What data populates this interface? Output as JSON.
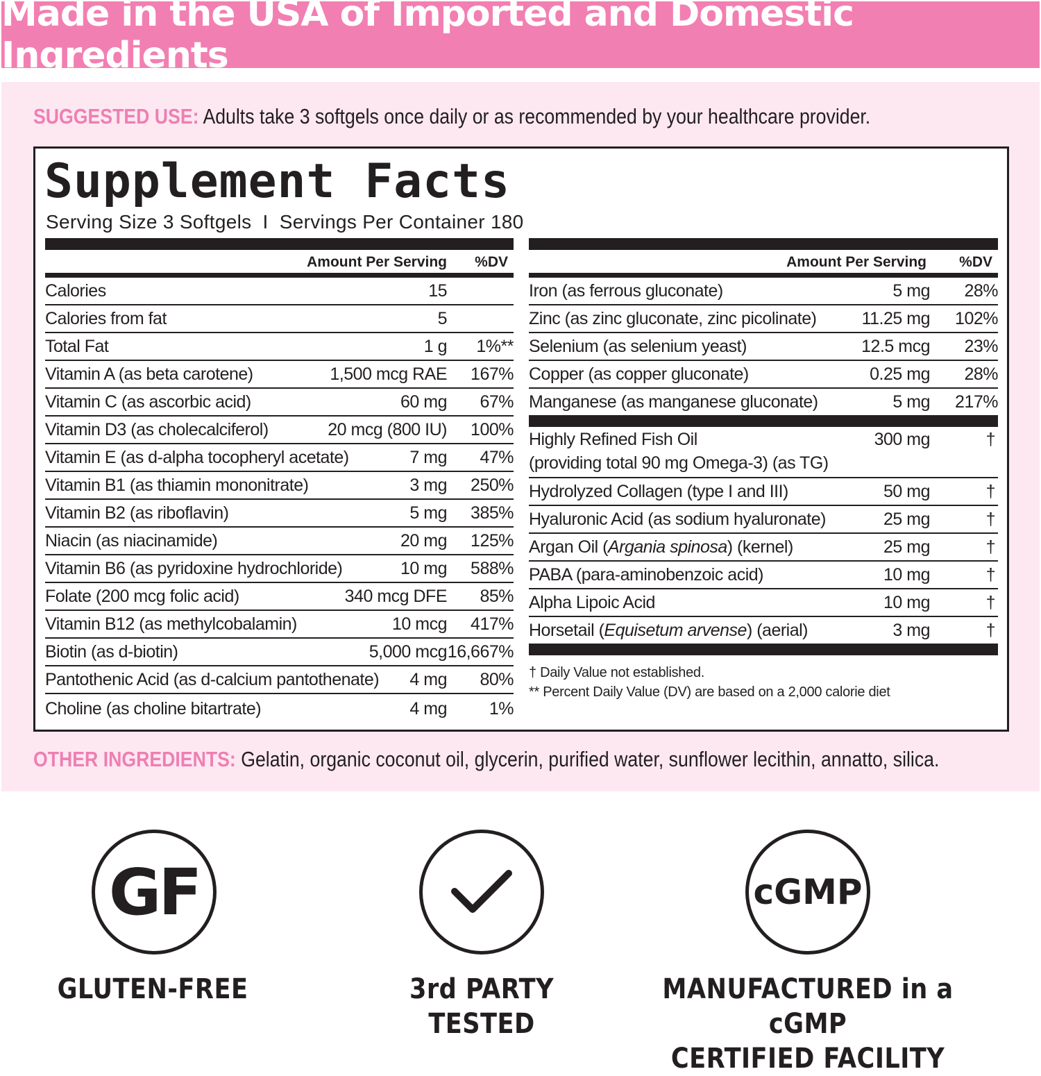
{
  "banner": "Made in the USA of Imported and Domestic Ingredients",
  "suggested_use": {
    "label": "SUGGESTED USE:",
    "text": "Adults take 3 softgels once daily or as recommended by your healthcare provider."
  },
  "facts": {
    "title": "Supplement Facts",
    "serving": "Serving Size 3 Softgels  I  Servings Per Container 180",
    "header_amount": "Amount Per Serving",
    "header_dv": "%DV",
    "left_rows": [
      {
        "name": [
          {
            "t": "Calories"
          }
        ],
        "amount": "15",
        "dv": ""
      },
      {
        "name": [
          {
            "t": "Calories from fat"
          }
        ],
        "amount": "5",
        "dv": ""
      },
      {
        "name": [
          {
            "t": "Total Fat"
          }
        ],
        "amount": "1 g",
        "dv": "1%**"
      },
      {
        "name": [
          {
            "t": "Vitamin A (as beta carotene)"
          }
        ],
        "amount": "1,500 mcg RAE",
        "dv": "167%"
      },
      {
        "name": [
          {
            "t": "Vitamin C (as ascorbic acid)"
          }
        ],
        "amount": "60 mg",
        "dv": "67%"
      },
      {
        "name": [
          {
            "t": "Vitamin D3 (as cholecalciferol)"
          }
        ],
        "amount": "20 mcg (800 IU)",
        "dv": "100%"
      },
      {
        "name": [
          {
            "t": "Vitamin E (as d-alpha tocopheryl acetate)"
          }
        ],
        "amount": "7 mg",
        "dv": "47%"
      },
      {
        "name": [
          {
            "t": "Vitamin B1 (as thiamin mononitrate)"
          }
        ],
        "amount": "3 mg",
        "dv": "250%"
      },
      {
        "name": [
          {
            "t": "Vitamin B2 (as riboflavin)"
          }
        ],
        "amount": "5 mg",
        "dv": "385%"
      },
      {
        "name": [
          {
            "t": "Niacin (as niacinamide)"
          }
        ],
        "amount": "20 mg",
        "dv": "125%"
      },
      {
        "name": [
          {
            "t": "Vitamin B6 (as pyridoxine hydrochloride)"
          }
        ],
        "amount": "10 mg",
        "dv": "588%"
      },
      {
        "name": [
          {
            "t": "Folate (200 mcg folic acid)"
          }
        ],
        "amount": "340 mcg DFE",
        "dv": "85%"
      },
      {
        "name": [
          {
            "t": "Vitamin B12 (as methylcobalamin)"
          }
        ],
        "amount": "10 mcg",
        "dv": "417%"
      },
      {
        "name": [
          {
            "t": "Biotin (as d-biotin)"
          }
        ],
        "amount": "5,000 mcg",
        "dv": "16,667%"
      },
      {
        "name": [
          {
            "t": "Pantothenic Acid (as d-calcium pantothenate)"
          }
        ],
        "amount": "4 mg",
        "dv": "80%"
      },
      {
        "name": [
          {
            "t": "Choline (as choline bitartrate)"
          }
        ],
        "amount": "4 mg",
        "dv": "1%"
      }
    ],
    "right_rows_a": [
      {
        "name": [
          {
            "t": "Iron (as ferrous gluconate)"
          }
        ],
        "amount": "5 mg",
        "dv": "28%"
      },
      {
        "name": [
          {
            "t": "Zinc (as zinc gluconate, zinc picolinate)"
          }
        ],
        "amount": "11.25 mg",
        "dv": "102%"
      },
      {
        "name": [
          {
            "t": "Selenium (as selenium yeast)"
          }
        ],
        "amount": "12.5 mcg",
        "dv": "23%"
      },
      {
        "name": [
          {
            "t": "Copper (as copper gluconate)"
          }
        ],
        "amount": "0.25 mg",
        "dv": "28%"
      },
      {
        "name": [
          {
            "t": "Manganese (as manganese gluconate)"
          }
        ],
        "amount": "5 mg",
        "dv": "217%"
      }
    ],
    "fish_oil": {
      "line1": "Highly Refined Fish Oil",
      "line2": "(providing total 90 mg Omega-3) (as TG)",
      "amount": "300 mg",
      "dv": "†"
    },
    "right_rows_b": [
      {
        "name": [
          {
            "t": "Hydrolyzed Collagen (type I and III)"
          }
        ],
        "amount": "50 mg",
        "dv": "†"
      },
      {
        "name": [
          {
            "t": "Hyaluronic Acid (as sodium hyaluronate)"
          }
        ],
        "amount": "25 mg",
        "dv": "†"
      },
      {
        "name": [
          {
            "t": "Argan Oil ("
          },
          {
            "t": "Argania spinosa",
            "i": true
          },
          {
            "t": ") (kernel)"
          }
        ],
        "amount": "25 mg",
        "dv": "†"
      },
      {
        "name": [
          {
            "t": "PABA (para-aminobenzoic acid)"
          }
        ],
        "amount": "10 mg",
        "dv": "†"
      },
      {
        "name": [
          {
            "t": "Alpha Lipoic Acid"
          }
        ],
        "amount": "10 mg",
        "dv": "†"
      },
      {
        "name": [
          {
            "t": "Horsetail ("
          },
          {
            "t": "Equisetum arvense",
            "i": true
          },
          {
            "t": ") (aerial)"
          }
        ],
        "amount": "3 mg",
        "dv": "†"
      }
    ],
    "footnote1": "†  Daily Value not established.",
    "footnote2": "** Percent Daily Value (DV) are based on a 2,000 calorie diet"
  },
  "other_ingredients": {
    "label": "OTHER INGREDIENTS:",
    "text": "Gelatin, organic coconut oil, glycerin, purified water, sunflower lecithin, annatto, silica."
  },
  "badges": [
    {
      "icon": "gluten-free-icon",
      "glyph": "GF",
      "label1": "GLUTEN-FREE",
      "label2": ""
    },
    {
      "icon": "checkmark-icon",
      "glyph": "",
      "label1": "3rd PARTY",
      "label2": "TESTED"
    },
    {
      "icon": "cgmp-icon",
      "glyph": "cGMP",
      "label1": "MANUFACTURED in a cGMP",
      "label2": "CERTIFIED FACILITY"
    }
  ],
  "colors": {
    "banner": "#f27fb2",
    "panel": "#fde8f1",
    "accent": "#ee7fb3",
    "ink": "#231f20"
  }
}
